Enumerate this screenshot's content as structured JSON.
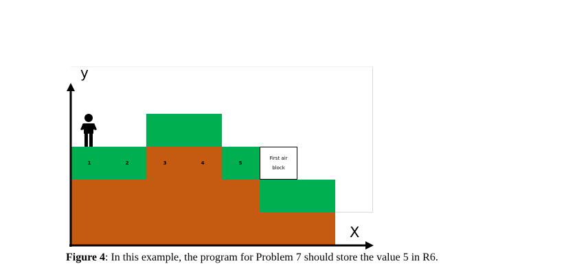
{
  "axes": {
    "y_label": "y",
    "x_label": "X"
  },
  "blocks": {
    "labels": [
      "1",
      "2",
      "3",
      "4",
      "5"
    ]
  },
  "air_block": {
    "line1": "First air",
    "line2": "block"
  },
  "caption": {
    "bold": "Figure 4",
    "text": ": In this example, the program for Problem 7 should store the value 5 in R6."
  },
  "colors": {
    "grass": "#00b050",
    "dirt": "#c55a11"
  },
  "icons": {
    "character": "person-icon"
  }
}
